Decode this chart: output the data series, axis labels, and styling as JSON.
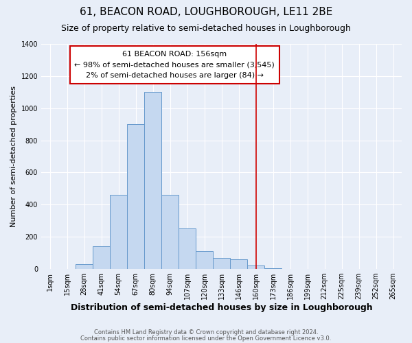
{
  "title": "61, BEACON ROAD, LOUGHBOROUGH, LE11 2BE",
  "subtitle": "Size of property relative to semi-detached houses in Loughborough",
  "xlabel": "Distribution of semi-detached houses by size in Loughborough",
  "ylabel": "Number of semi-detached properties",
  "footer_line1": "Contains HM Land Registry data © Crown copyright and database right 2024.",
  "footer_line2": "Contains public sector information licensed under the Open Government Licence v3.0.",
  "annotation_title": "61 BEACON ROAD: 156sqm",
  "annotation_line1": "← 98% of semi-detached houses are smaller (3,545)",
  "annotation_line2": "2% of semi-detached houses are larger (84) →",
  "categories": [
    "1sqm",
    "15sqm",
    "28sqm",
    "41sqm",
    "54sqm",
    "67sqm",
    "80sqm",
    "94sqm",
    "107sqm",
    "120sqm",
    "133sqm",
    "146sqm",
    "160sqm",
    "173sqm",
    "186sqm",
    "199sqm",
    "212sqm",
    "225sqm",
    "239sqm",
    "252sqm",
    "265sqm"
  ],
  "values": [
    0,
    2,
    30,
    140,
    460,
    900,
    1100,
    460,
    250,
    110,
    70,
    60,
    20,
    5,
    2,
    0,
    0,
    0,
    0,
    0,
    0
  ],
  "bar_color": "#c5d8f0",
  "bar_edge_color": "#6699cc",
  "vline_color": "#cc0000",
  "vline_index": 12,
  "ylim": [
    0,
    1400
  ],
  "yticks": [
    0,
    200,
    400,
    600,
    800,
    1000,
    1200,
    1400
  ],
  "background_color": "#e8eef8",
  "grid_color": "#ffffff",
  "title_fontsize": 11,
  "subtitle_fontsize": 9,
  "xlabel_fontsize": 9,
  "ylabel_fontsize": 8,
  "tick_fontsize": 7,
  "annotation_fontsize": 8
}
